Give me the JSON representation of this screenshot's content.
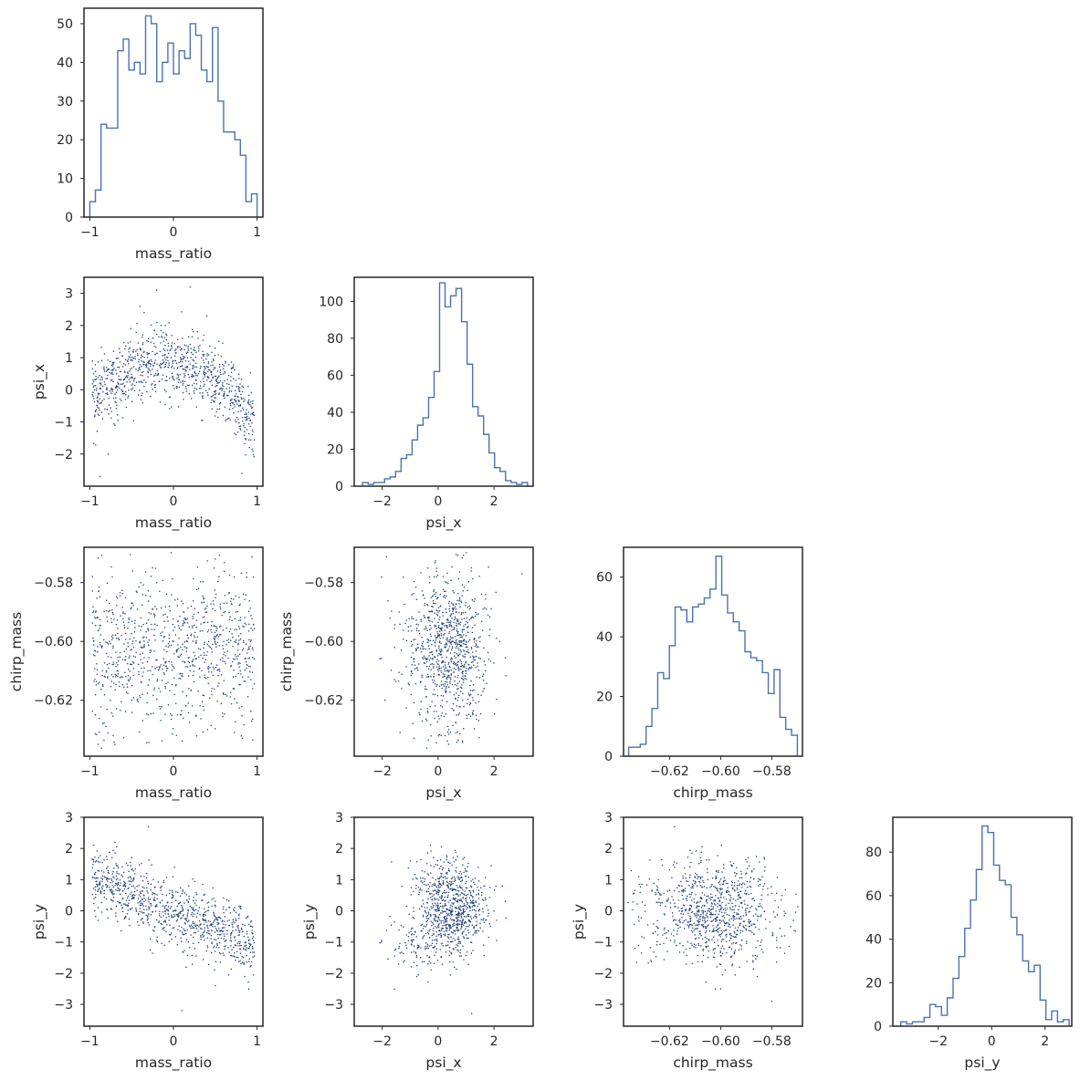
{
  "figure": {
    "type": "corner-plot",
    "variables": [
      "mass_ratio",
      "psi_x",
      "chirp_mass",
      "psi_y"
    ],
    "line_color": "#4c72b0",
    "point_color": "#1f3f7a",
    "frame_color": "#262626"
  },
  "chart_data": [
    {
      "panel": "mass_ratio-hist",
      "type": "histogram",
      "xlabel": "mass_ratio",
      "xlim": [
        -1.07,
        1.07
      ],
      "ylim": [
        0,
        54
      ],
      "xticks": [
        {
          "v": -1,
          "t": "−1"
        },
        {
          "v": 0,
          "t": "0"
        },
        {
          "v": 1,
          "t": "1"
        }
      ],
      "yticks": [
        {
          "v": 0,
          "t": "0"
        },
        {
          "v": 10,
          "t": "10"
        },
        {
          "v": 20,
          "t": "20"
        },
        {
          "v": 30,
          "t": "30"
        },
        {
          "v": 40,
          "t": "40"
        },
        {
          "v": 50,
          "t": "50"
        }
      ],
      "bin_start": -1.0,
      "bin_end": 1.0,
      "counts": [
        4,
        7,
        24,
        23,
        23,
        43,
        46,
        38,
        40,
        37,
        52,
        50,
        35,
        40,
        45,
        37,
        43,
        41,
        50,
        47,
        38,
        35,
        49,
        30,
        22,
        22,
        20,
        16,
        4,
        6
      ]
    },
    {
      "panel": "psi_x-vs-mass_ratio",
      "type": "scatter",
      "xlabel": "mass_ratio",
      "ylabel": "psi_x",
      "xlim": [
        -1.07,
        1.07
      ],
      "ylim": [
        -3.0,
        3.5
      ],
      "xticks": [
        {
          "v": -1,
          "t": "−1"
        },
        {
          "v": 0,
          "t": "0"
        },
        {
          "v": 1,
          "t": "1"
        }
      ],
      "yticks": [
        {
          "v": -2,
          "t": "−2"
        },
        {
          "v": -1,
          "t": "−1"
        },
        {
          "v": 0,
          "t": "0"
        },
        {
          "v": 1,
          "t": "1"
        },
        {
          "v": 2,
          "t": "2"
        },
        {
          "v": 3,
          "t": "3"
        }
      ],
      "trend": "psi_x ≈ 0.9 − 1.6·(mass_ratio+0.1)²",
      "points": [
        [
          -0.82,
          -0.6
        ],
        [
          -0.74,
          0.5
        ],
        [
          -0.7,
          -1.1
        ],
        [
          -0.65,
          0.7
        ],
        [
          -0.6,
          0.2
        ],
        [
          -0.55,
          0.9
        ],
        [
          -0.5,
          0.4
        ],
        [
          -0.45,
          1.2
        ],
        [
          -0.42,
          0.6
        ],
        [
          -0.38,
          0.9
        ],
        [
          -0.35,
          0.3
        ],
        [
          -0.3,
          1.5
        ],
        [
          -0.27,
          0.8
        ],
        [
          -0.22,
          1.1
        ],
        [
          -0.18,
          0.5
        ],
        [
          -0.15,
          2.0
        ],
        [
          -0.1,
          1.0
        ],
        [
          -0.06,
          0.7
        ],
        [
          -0.02,
          1.3
        ],
        [
          0.02,
          0.9
        ],
        [
          0.06,
          0.4
        ],
        [
          0.1,
          1.1
        ],
        [
          0.15,
          0.6
        ],
        [
          0.2,
          0.8
        ],
        [
          0.25,
          0.2
        ],
        [
          0.3,
          0.5
        ],
        [
          0.35,
          -0.1
        ],
        [
          0.4,
          0.3
        ],
        [
          0.45,
          -0.4
        ],
        [
          0.5,
          0.1
        ],
        [
          0.55,
          -0.6
        ],
        [
          0.6,
          -0.2
        ],
        [
          0.65,
          -0.9
        ],
        [
          0.7,
          -0.3
        ],
        [
          0.75,
          -1.0
        ],
        [
          0.8,
          -0.5
        ],
        [
          0.85,
          -1.3
        ],
        [
          0.9,
          -0.7
        ],
        [
          -0.88,
          -2.7
        ],
        [
          0.82,
          -2.6
        ],
        [
          -0.2,
          3.1
        ],
        [
          0.2,
          3.2
        ],
        [
          -0.4,
          2.6
        ],
        [
          0.4,
          2.3
        ],
        [
          -0.78,
          -2.0
        ],
        [
          0.95,
          -1.9
        ]
      ]
    },
    {
      "panel": "psi_x-hist",
      "type": "histogram",
      "xlabel": "psi_x",
      "xlim": [
        -3.0,
        3.4
      ],
      "ylim": [
        0,
        113
      ],
      "xticks": [
        {
          "v": -2,
          "t": "−2"
        },
        {
          "v": 0,
          "t": "0"
        },
        {
          "v": 2,
          "t": "2"
        }
      ],
      "yticks": [
        {
          "v": 0,
          "t": "0"
        },
        {
          "v": 20,
          "t": "20"
        },
        {
          "v": 40,
          "t": "40"
        },
        {
          "v": 60,
          "t": "60"
        },
        {
          "v": 80,
          "t": "80"
        },
        {
          "v": 100,
          "t": "100"
        }
      ],
      "bin_start": -2.7,
      "bin_end": 3.2,
      "counts": [
        2,
        1,
        2,
        2,
        4,
        5,
        8,
        15,
        17,
        25,
        33,
        37,
        48,
        62,
        110,
        97,
        103,
        107,
        89,
        66,
        43,
        38,
        28,
        18,
        10,
        8,
        3,
        2,
        1,
        2
      ]
    },
    {
      "panel": "chirp_mass-vs-mass_ratio",
      "type": "scatter",
      "xlabel": "mass_ratio",
      "ylabel": "chirp_mass",
      "xlim": [
        -1.07,
        1.07
      ],
      "ylim": [
        -0.639,
        -0.568
      ],
      "xticks": [
        {
          "v": -1,
          "t": "−1"
        },
        {
          "v": 0,
          "t": "0"
        },
        {
          "v": 1,
          "t": "1"
        }
      ],
      "yticks": [
        {
          "v": -0.62,
          "t": "−0.62"
        },
        {
          "v": -0.6,
          "t": "−0.60"
        },
        {
          "v": -0.58,
          "t": "−0.58"
        }
      ],
      "trend": "uncorrelated",
      "points": [
        [
          -0.8,
          -0.61
        ],
        [
          -0.6,
          -0.59
        ],
        [
          -0.4,
          -0.6
        ],
        [
          -0.2,
          -0.58
        ],
        [
          0.0,
          -0.6
        ],
        [
          0.2,
          -0.61
        ],
        [
          0.4,
          -0.59
        ],
        [
          0.6,
          -0.6
        ],
        [
          0.8,
          -0.61
        ],
        [
          -0.7,
          -0.635
        ],
        [
          0.5,
          -0.572
        ],
        [
          -0.3,
          -0.625
        ],
        [
          0.3,
          -0.582
        ]
      ]
    },
    {
      "panel": "chirp_mass-vs-psi_x",
      "type": "scatter",
      "xlabel": "psi_x",
      "ylabel": "chirp_mass",
      "xlim": [
        -3.0,
        3.4
      ],
      "ylim": [
        -0.639,
        -0.568
      ],
      "xticks": [
        {
          "v": -2,
          "t": "−2"
        },
        {
          "v": 0,
          "t": "0"
        },
        {
          "v": 2,
          "t": "2"
        }
      ],
      "yticks": [
        {
          "v": -0.62,
          "t": "−0.62"
        },
        {
          "v": -0.6,
          "t": "−0.60"
        },
        {
          "v": -0.58,
          "t": "−0.58"
        }
      ],
      "trend": "uncorrelated",
      "points": [
        [
          0.5,
          -0.6
        ],
        [
          1.0,
          -0.61
        ],
        [
          0.0,
          -0.59
        ],
        [
          0.7,
          -0.62
        ],
        [
          0.3,
          -0.58
        ],
        [
          1.5,
          -0.6
        ],
        [
          -0.5,
          -0.605
        ],
        [
          2.2,
          -0.6
        ],
        [
          -1.9,
          -0.62
        ],
        [
          3.0,
          -0.577
        ]
      ]
    },
    {
      "panel": "chirp_mass-hist",
      "type": "histogram",
      "xlabel": "chirp_mass",
      "xlim": [
        -0.638,
        -0.568
      ],
      "ylim": [
        0,
        70
      ],
      "xticks": [
        {
          "v": -0.62,
          "t": "−0.62"
        },
        {
          "v": -0.6,
          "t": "−0.60"
        },
        {
          "v": -0.58,
          "t": "−0.58"
        }
      ],
      "yticks": [
        {
          "v": 0,
          "t": "0"
        },
        {
          "v": 20,
          "t": "20"
        },
        {
          "v": 40,
          "t": "40"
        },
        {
          "v": 60,
          "t": "60"
        }
      ],
      "bin_start": -0.636,
      "bin_end": -0.57,
      "counts": [
        3,
        3,
        4,
        10,
        16,
        28,
        26,
        37,
        50,
        49,
        45,
        50,
        51,
        53,
        56,
        67,
        54,
        48,
        45,
        42,
        35,
        33,
        32,
        28,
        21,
        29,
        13,
        9,
        7
      ]
    },
    {
      "panel": "psi_y-vs-mass_ratio",
      "type": "scatter",
      "xlabel": "mass_ratio",
      "ylabel": "psi_y",
      "xlim": [
        -1.07,
        1.07
      ],
      "ylim": [
        -3.7,
        3.0
      ],
      "xticks": [
        {
          "v": -1,
          "t": "−1"
        },
        {
          "v": 0,
          "t": "0"
        },
        {
          "v": 1,
          "t": "1"
        }
      ],
      "yticks": [
        {
          "v": -3,
          "t": "−3"
        },
        {
          "v": -2,
          "t": "−2"
        },
        {
          "v": -1,
          "t": "−1"
        },
        {
          "v": 0,
          "t": "0"
        },
        {
          "v": 1,
          "t": "1"
        },
        {
          "v": 2,
          "t": "2"
        },
        {
          "v": 3,
          "t": "3"
        }
      ],
      "trend": "psi_y ≈ −0.05 − 1.1·mass_ratio (negative correlation)",
      "points": [
        [
          -0.8,
          1.0
        ],
        [
          -0.6,
          0.8
        ],
        [
          -0.4,
          0.6
        ],
        [
          -0.2,
          0.2
        ],
        [
          0.0,
          -0.2
        ],
        [
          0.2,
          -0.5
        ],
        [
          0.4,
          -0.7
        ],
        [
          0.6,
          -0.9
        ],
        [
          0.8,
          -1.0
        ],
        [
          -0.3,
          2.7
        ],
        [
          0.1,
          -3.2
        ],
        [
          0.5,
          -2.4
        ],
        [
          -0.7,
          2.2
        ]
      ]
    },
    {
      "panel": "psi_y-vs-psi_x",
      "type": "scatter",
      "xlabel": "psi_x",
      "ylabel": "psi_y",
      "xlim": [
        -3.0,
        3.4
      ],
      "ylim": [
        -3.7,
        3.0
      ],
      "xticks": [
        {
          "v": -2,
          "t": "−2"
        },
        {
          "v": 0,
          "t": "0"
        },
        {
          "v": 2,
          "t": "2"
        }
      ],
      "yticks": [
        {
          "v": -3,
          "t": "−3"
        },
        {
          "v": -2,
          "t": "−2"
        },
        {
          "v": -1,
          "t": "−1"
        },
        {
          "v": 0,
          "t": "0"
        },
        {
          "v": 1,
          "t": "1"
        },
        {
          "v": 2,
          "t": "2"
        },
        {
          "v": 3,
          "t": "3"
        }
      ],
      "trend": "weakly correlated",
      "points": [
        [
          0.5,
          0.0
        ],
        [
          1.0,
          0.5
        ],
        [
          0.0,
          -0.5
        ],
        [
          0.8,
          -1.0
        ],
        [
          0.3,
          1.2
        ],
        [
          1.6,
          -0.3
        ],
        [
          -1.4,
          -1.2
        ],
        [
          2.3,
          0.8
        ],
        [
          -1.0,
          1.6
        ],
        [
          1.2,
          -3.3
        ]
      ]
    },
    {
      "panel": "psi_y-vs-chirp_mass",
      "type": "scatter",
      "xlabel": "chirp_mass",
      "ylabel": "psi_y",
      "xlim": [
        -0.638,
        -0.568
      ],
      "ylim": [
        -3.7,
        3.0
      ],
      "xticks": [
        {
          "v": -0.62,
          "t": "−0.62"
        },
        {
          "v": -0.6,
          "t": "−0.60"
        },
        {
          "v": -0.58,
          "t": "−0.58"
        }
      ],
      "yticks": [
        {
          "v": -3,
          "t": "−3"
        },
        {
          "v": -2,
          "t": "−2"
        },
        {
          "v": -1,
          "t": "−1"
        },
        {
          "v": 0,
          "t": "0"
        },
        {
          "v": 1,
          "t": "1"
        },
        {
          "v": 2,
          "t": "2"
        },
        {
          "v": 3,
          "t": "3"
        }
      ],
      "trend": "negative correlation",
      "points": [
        [
          -0.625,
          0.8
        ],
        [
          -0.615,
          0.5
        ],
        [
          -0.605,
          0.0
        ],
        [
          -0.595,
          -0.3
        ],
        [
          -0.585,
          -0.6
        ],
        [
          -0.575,
          -0.8
        ],
        [
          -0.618,
          2.7
        ],
        [
          -0.6,
          -2.5
        ],
        [
          -0.58,
          -2.9
        ]
      ]
    },
    {
      "panel": "psi_y-hist",
      "type": "histogram",
      "xlabel": "psi_y",
      "xlim": [
        -3.7,
        3.0
      ],
      "ylim": [
        0,
        96
      ],
      "xticks": [
        {
          "v": -2,
          "t": "−2"
        },
        {
          "v": 0,
          "t": "0"
        },
        {
          "v": 2,
          "t": "2"
        }
      ],
      "yticks": [
        {
          "v": 0,
          "t": "0"
        },
        {
          "v": 20,
          "t": "20"
        },
        {
          "v": 40,
          "t": "40"
        },
        {
          "v": 60,
          "t": "60"
        },
        {
          "v": 80,
          "t": "80"
        }
      ],
      "bin_start": -3.4,
      "bin_end": 2.9,
      "counts": [
        2,
        1,
        2,
        2,
        4,
        10,
        9,
        5,
        13,
        22,
        32,
        45,
        58,
        72,
        92,
        89,
        74,
        67,
        65,
        50,
        42,
        30,
        25,
        28,
        12,
        3,
        7,
        2,
        3
      ]
    }
  ]
}
